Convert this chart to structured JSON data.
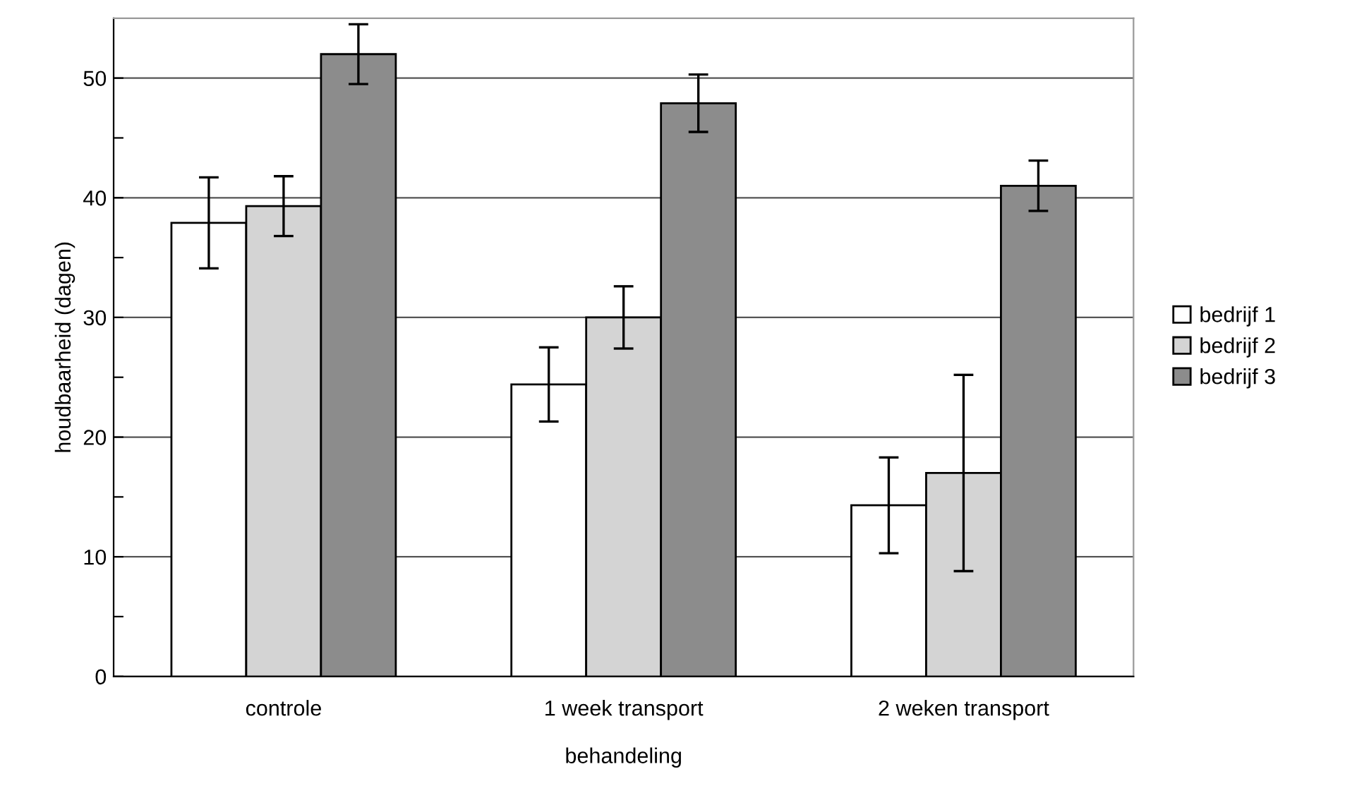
{
  "chart_data": {
    "type": "bar",
    "xlabel": "behandeling",
    "ylabel": "houdbaarheid (dagen)",
    "categories": [
      "controle",
      "1 week transport",
      "2 weken transport"
    ],
    "series": [
      {
        "name": "bedrijf 1",
        "color": "#ffffff",
        "values": [
          37.9,
          24.4,
          14.3
        ],
        "errors": [
          3.8,
          3.1,
          4.0
        ]
      },
      {
        "name": "bedrijf 2",
        "color": "#d4d4d4",
        "values": [
          39.3,
          30.0,
          17.0
        ],
        "errors": [
          2.5,
          2.6,
          8.2
        ]
      },
      {
        "name": "bedrijf 3",
        "color": "#8c8c8c",
        "values": [
          52.0,
          47.9,
          41.0
        ],
        "errors": [
          2.5,
          2.4,
          2.1
        ]
      }
    ],
    "ylim": [
      0,
      55
    ],
    "yticks": [
      0,
      {
        "value": 5,
        "label": null
      },
      10,
      {
        "value": 15,
        "label": null
      },
      20,
      {
        "value": 25,
        "label": null
      },
      30,
      {
        "value": 35,
        "label": null
      },
      40,
      {
        "value": 45,
        "label": null
      },
      50
    ],
    "grid": "y",
    "legend": "right"
  }
}
